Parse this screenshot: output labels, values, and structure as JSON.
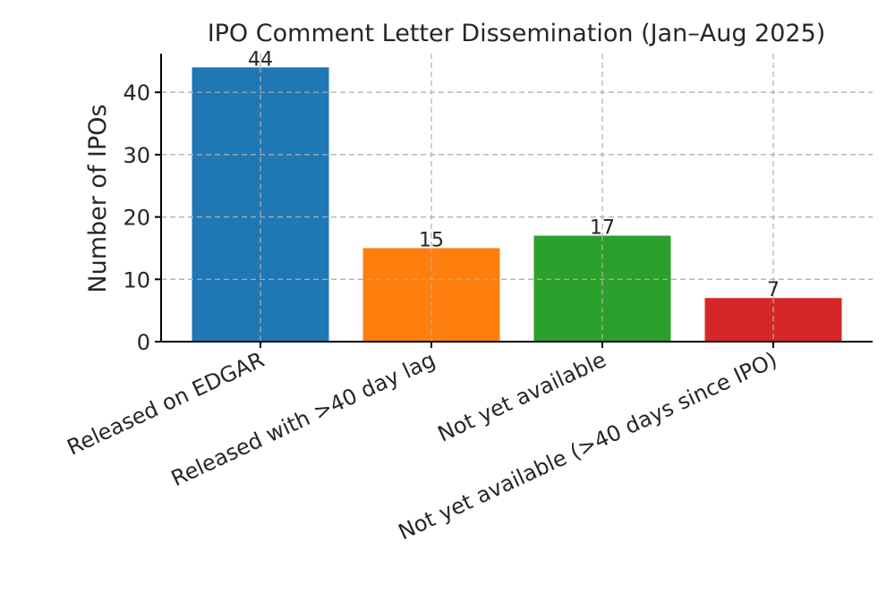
{
  "chart_data": {
    "type": "bar",
    "title": "IPO Comment Letter Dissemination (Jan–Aug 2025)",
    "xlabel": "",
    "ylabel": "Number of IPOs",
    "categories": [
      "Released on EDGAR",
      "Released with >40 day lag",
      "Not yet available",
      "Not yet available (>40 days since IPO)"
    ],
    "values": [
      44,
      15,
      17,
      7
    ],
    "data_labels": [
      "44",
      "15",
      "17",
      "7"
    ],
    "colors": [
      "#1f77b4",
      "#ff7f0e",
      "#2ca02c",
      "#d62728"
    ],
    "ylim": [
      0,
      46.2
    ],
    "yticks": [
      0,
      10,
      20,
      30,
      40
    ],
    "ytick_labels": [
      "0",
      "10",
      "20",
      "30",
      "40"
    ],
    "grid": true,
    "legend": "none"
  }
}
